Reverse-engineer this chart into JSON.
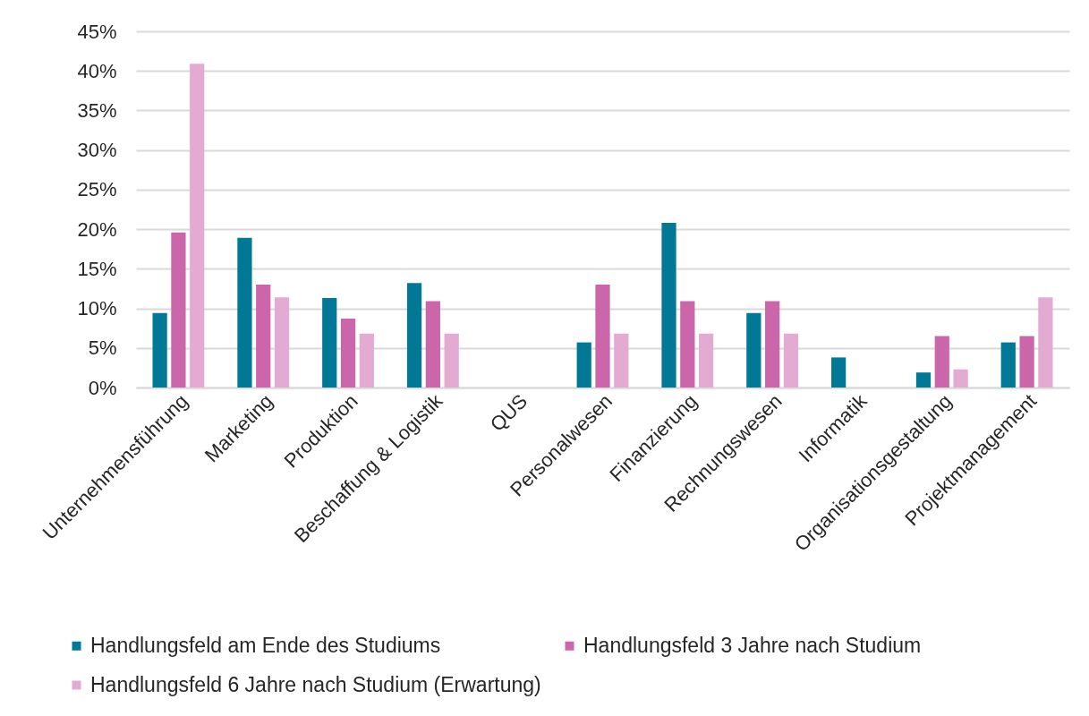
{
  "chart_data": {
    "type": "bar",
    "categories": [
      "Unternehmensführung",
      "Marketing",
      "Produktion",
      "Beschaffung & Logistik",
      "QUS",
      "Personalwesen",
      "Finanzierung",
      "Rechnungswesen",
      "Informatik",
      "Organisationsgestaltung",
      "Projektmanagement"
    ],
    "series": [
      {
        "name": "Handlungsfeld am Ende des Studiums",
        "color": "#007896",
        "values": [
          9.4,
          18.9,
          11.3,
          13.2,
          null,
          5.7,
          20.8,
          9.4,
          3.8,
          1.9,
          5.7
        ]
      },
      {
        "name": "Handlungsfeld 3 Jahre nach Studium",
        "color": "#cc66aa",
        "values": [
          19.6,
          13.0,
          8.7,
          10.9,
          null,
          13.0,
          10.9,
          10.9,
          null,
          6.5,
          6.5
        ]
      },
      {
        "name": "Handlungsfeld 6 Jahre nach Studium (Erwartung)",
        "color": "#e3aad2",
        "values": [
          40.9,
          11.4,
          6.8,
          6.8,
          null,
          6.8,
          6.8,
          6.8,
          null,
          2.3,
          11.4
        ]
      }
    ],
    "ylim": [
      0,
      45
    ],
    "yticks": [
      {
        "value": 0,
        "label": "0%"
      },
      {
        "value": 5,
        "label": "5%"
      },
      {
        "value": 10,
        "label": "10%"
      },
      {
        "value": 15,
        "label": "15%"
      },
      {
        "value": 20,
        "label": "20%"
      },
      {
        "value": 25,
        "label": "25%"
      },
      {
        "value": 30,
        "label": "30%"
      },
      {
        "value": 35,
        "label": "35%"
      },
      {
        "value": 40,
        "label": "40%"
      },
      {
        "value": 45,
        "label": "45%"
      }
    ],
    "grid": "y",
    "legend": "bottom"
  }
}
